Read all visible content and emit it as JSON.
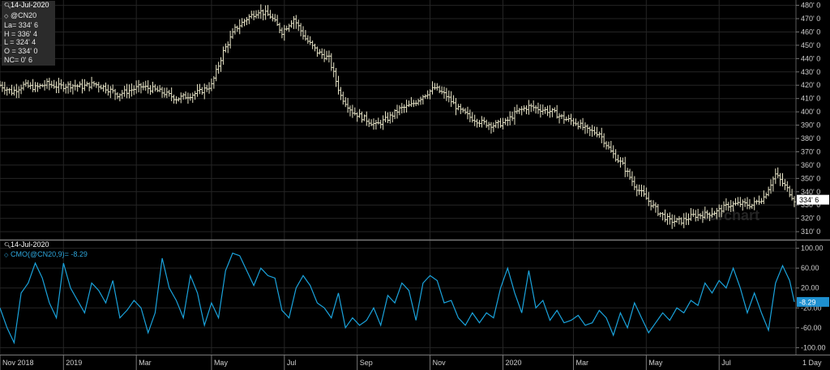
{
  "info_panel": {
    "date": "14-Jul-2020",
    "symbol": "@CN20",
    "last": "La= 334' 6",
    "high": "H = 336' 4",
    "low": "L = 324' 4",
    "open": "O = 334' 0",
    "net_change": "NC= 0' 6"
  },
  "sub_panel": {
    "date": "14-Jul-2020",
    "study_label": "CMO(@CN20,9)= -8.29"
  },
  "watermark": "barchart",
  "period": "1 Day",
  "colors": {
    "price_bars": "#e9e6c9",
    "cmo_line": "#1aa3dc",
    "last_price_tag": "#ffffff",
    "cmo_tag": "#1e90d0",
    "grid": "#252525"
  },
  "chart_data": [
    {
      "type": "ohlc",
      "title": "@CN20",
      "y_axis_ticks": [
        "480' 0",
        "470' 0",
        "460' 0",
        "450' 0",
        "440' 0",
        "430' 0",
        "420' 0",
        "410' 0",
        "400' 0",
        "390' 0",
        "380' 0",
        "370' 0",
        "360' 0",
        "350' 0",
        "340' 0",
        "330' 0",
        "320' 0",
        "310' 0"
      ],
      "ylim": [
        304,
        484
      ],
      "last_price_label": "334' 6",
      "x_axis_labels": [
        "Nov 2018",
        "2019",
        "Mar",
        "May",
        "Jul",
        "Sep",
        "Nov",
        "2020",
        "Mar",
        "May",
        "Jul"
      ],
      "close_trace": [
        [
          0,
          420
        ],
        [
          5,
          415
        ],
        [
          10,
          420
        ],
        [
          15,
          418
        ],
        [
          20,
          421
        ],
        [
          25,
          419
        ],
        [
          30,
          420
        ],
        [
          35,
          419
        ],
        [
          40,
          421
        ],
        [
          45,
          418
        ],
        [
          50,
          413
        ],
        [
          55,
          416
        ],
        [
          60,
          419
        ],
        [
          65,
          417
        ],
        [
          70,
          414
        ],
        [
          75,
          410
        ],
        [
          80,
          412
        ],
        [
          85,
          415
        ],
        [
          90,
          420
        ],
        [
          95,
          445
        ],
        [
          100,
          462
        ],
        [
          105,
          470
        ],
        [
          110,
          476
        ],
        [
          115,
          472
        ],
        [
          120,
          460
        ],
        [
          125,
          470
        ],
        [
          130,
          455
        ],
        [
          135,
          445
        ],
        [
          140,
          440
        ],
        [
          145,
          412
        ],
        [
          150,
          400
        ],
        [
          155,
          395
        ],
        [
          160,
          390
        ],
        [
          165,
          395
        ],
        [
          170,
          402
        ],
        [
          175,
          405
        ],
        [
          180,
          412
        ],
        [
          185,
          418
        ],
        [
          190,
          412
        ],
        [
          195,
          402
        ],
        [
          200,
          396
        ],
        [
          205,
          392
        ],
        [
          210,
          390
        ],
        [
          215,
          392
        ],
        [
          220,
          400
        ],
        [
          225,
          404
        ],
        [
          230,
          402
        ],
        [
          235,
          400
        ],
        [
          240,
          395
        ],
        [
          245,
          392
        ],
        [
          250,
          386
        ],
        [
          255,
          384
        ],
        [
          260,
          370
        ],
        [
          265,
          360
        ],
        [
          270,
          345
        ],
        [
          275,
          335
        ],
        [
          280,
          325
        ],
        [
          285,
          318
        ],
        [
          290,
          318
        ],
        [
          295,
          322
        ],
        [
          300,
          323
        ],
        [
          305,
          325
        ],
        [
          310,
          330
        ],
        [
          315,
          331
        ],
        [
          320,
          330
        ],
        [
          325,
          336
        ],
        [
          330,
          353
        ],
        [
          335,
          342
        ],
        [
          338,
          334
        ]
      ]
    },
    {
      "type": "line",
      "title": "CMO(@CN20,9)",
      "y_axis_ticks": [
        "100.00",
        "60.00",
        "20.00",
        "-20.00",
        "-60.00",
        "-100.00"
      ],
      "ylim": [
        -114,
        114
      ],
      "last_value_label": "-8.29",
      "trace": [
        [
          0,
          -20
        ],
        [
          3,
          -60
        ],
        [
          6,
          -90
        ],
        [
          9,
          10
        ],
        [
          12,
          30
        ],
        [
          15,
          70
        ],
        [
          18,
          40
        ],
        [
          21,
          -10
        ],
        [
          24,
          -40
        ],
        [
          27,
          70
        ],
        [
          30,
          20
        ],
        [
          33,
          -5
        ],
        [
          36,
          -30
        ],
        [
          39,
          30
        ],
        [
          42,
          15
        ],
        [
          45,
          -10
        ],
        [
          48,
          35
        ],
        [
          51,
          -40
        ],
        [
          54,
          -25
        ],
        [
          57,
          -5
        ],
        [
          60,
          -20
        ],
        [
          63,
          -70
        ],
        [
          66,
          -30
        ],
        [
          69,
          80
        ],
        [
          72,
          20
        ],
        [
          75,
          -5
        ],
        [
          78,
          -40
        ],
        [
          81,
          45
        ],
        [
          84,
          10
        ],
        [
          87,
          -55
        ],
        [
          90,
          -10
        ],
        [
          93,
          -40
        ],
        [
          96,
          55
        ],
        [
          99,
          90
        ],
        [
          102,
          85
        ],
        [
          105,
          55
        ],
        [
          108,
          25
        ],
        [
          111,
          60
        ],
        [
          114,
          45
        ],
        [
          117,
          40
        ],
        [
          120,
          -25
        ],
        [
          123,
          -40
        ],
        [
          126,
          20
        ],
        [
          129,
          45
        ],
        [
          132,
          25
        ],
        [
          135,
          -10
        ],
        [
          138,
          -20
        ],
        [
          141,
          -40
        ],
        [
          144,
          10
        ],
        [
          147,
          -60
        ],
        [
          150,
          -40
        ],
        [
          153,
          -55
        ],
        [
          156,
          -45
        ],
        [
          159,
          -20
        ],
        [
          162,
          -55
        ],
        [
          165,
          5
        ],
        [
          168,
          -10
        ],
        [
          171,
          30
        ],
        [
          174,
          15
        ],
        [
          177,
          -45
        ],
        [
          180,
          30
        ],
        [
          183,
          45
        ],
        [
          186,
          35
        ],
        [
          189,
          -10
        ],
        [
          192,
          -5
        ],
        [
          195,
          -40
        ],
        [
          198,
          -55
        ],
        [
          201,
          -30
        ],
        [
          204,
          -50
        ],
        [
          207,
          -30
        ],
        [
          210,
          -40
        ],
        [
          213,
          20
        ],
        [
          216,
          60
        ],
        [
          219,
          10
        ],
        [
          222,
          -30
        ],
        [
          225,
          55
        ],
        [
          228,
          -20
        ],
        [
          231,
          -5
        ],
        [
          234,
          -45
        ],
        [
          237,
          -25
        ],
        [
          240,
          -50
        ],
        [
          243,
          -45
        ],
        [
          246,
          -35
        ],
        [
          249,
          -55
        ],
        [
          252,
          -50
        ],
        [
          255,
          -25
        ],
        [
          258,
          -40
        ],
        [
          261,
          -75
        ],
        [
          264,
          -30
        ],
        [
          267,
          -60
        ],
        [
          270,
          -10
        ],
        [
          273,
          -40
        ],
        [
          276,
          -70
        ],
        [
          279,
          -50
        ],
        [
          282,
          -30
        ],
        [
          285,
          -45
        ],
        [
          288,
          -20
        ],
        [
          291,
          -30
        ],
        [
          294,
          -5
        ],
        [
          297,
          -15
        ],
        [
          300,
          30
        ],
        [
          303,
          10
        ],
        [
          306,
          35
        ],
        [
          309,
          20
        ],
        [
          312,
          60
        ],
        [
          315,
          20
        ],
        [
          318,
          -30
        ],
        [
          321,
          10
        ],
        [
          324,
          -30
        ],
        [
          327,
          -65
        ],
        [
          330,
          30
        ],
        [
          333,
          65
        ],
        [
          336,
          35
        ],
        [
          338,
          -8
        ]
      ]
    }
  ]
}
